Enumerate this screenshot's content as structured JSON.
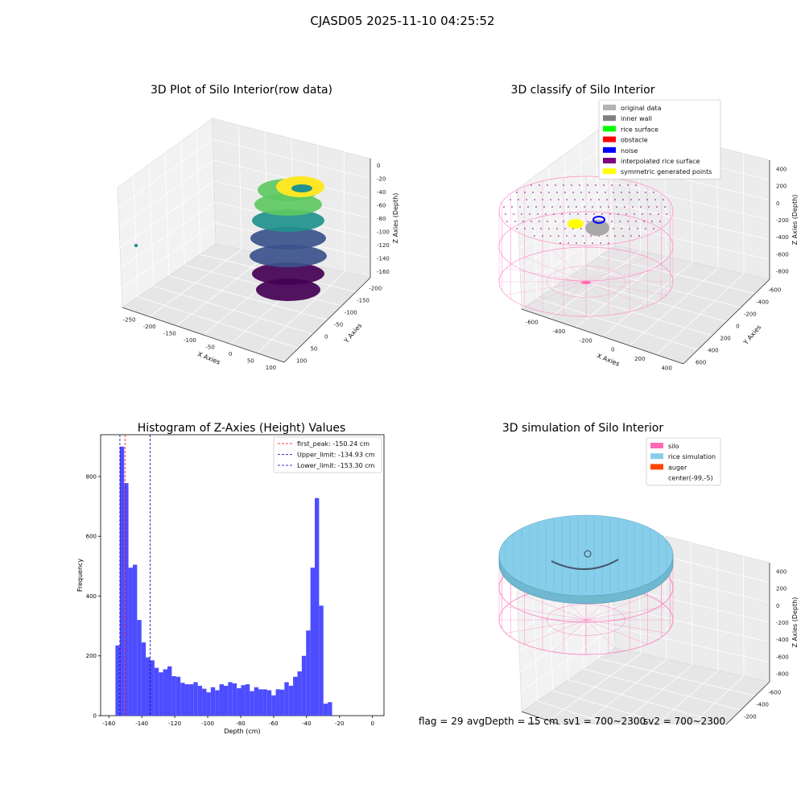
{
  "figure": {
    "suptitle": "CJASD05 2025-11-10 04:25:52",
    "footer": {
      "flag": "flag = 29",
      "avg_depth": "avgDepth = 15 cm",
      "sv1": "sv1 = 700~2300",
      "sv2": "sv2 = 700~2300"
    }
  },
  "panels": {
    "raw": {
      "title": "3D Plot of Silo Interior(row data)",
      "xlabel": "X Axies",
      "ylabel": "Y Axies",
      "zlabel": "Z Axies (Depth)",
      "xticks": [
        "-250",
        "-200",
        "-150",
        "-100",
        "-50",
        "0",
        "50",
        "100"
      ],
      "yticks": [
        "100",
        "50",
        "0",
        "-50",
        "-100",
        "-150",
        "-200"
      ],
      "zticks": [
        "0",
        "-20",
        "-40",
        "-60",
        "-80",
        "-100",
        "-120",
        "-140",
        "-160"
      ],
      "colormap": [
        "#440154",
        "#3b528b",
        "#21918c",
        "#5ec962",
        "#fde725"
      ]
    },
    "classify": {
      "title": "3D classify of Silo Interior",
      "xlabel": "X Axies",
      "ylabel": "Y Axies",
      "zlabel": "Z Axies (Depth)",
      "xticks": [
        "-600",
        "-400",
        "-200",
        "0",
        "200",
        "400"
      ],
      "yticks": [
        "600",
        "400",
        "200",
        "0",
        "-200",
        "-400",
        "-600"
      ],
      "zticks": [
        "400",
        "200",
        "0",
        "-200",
        "-400",
        "-600",
        "-800"
      ],
      "legend": [
        {
          "label": "original data",
          "color": "#b3b3b3"
        },
        {
          "label": "inner wall",
          "color": "#808080"
        },
        {
          "label": "rice surface",
          "color": "#00ff00"
        },
        {
          "label": "obstacle",
          "color": "#ff0000"
        },
        {
          "label": "noise",
          "color": "#0000ff"
        },
        {
          "label": "interpolated rice surface",
          "color": "#800080"
        },
        {
          "label": "symmetric generated points",
          "color": "#ffff00"
        }
      ]
    },
    "simulation": {
      "title": "3D simulation of Silo Interior",
      "xlabel": "X Axies",
      "ylabel": "Y Axies",
      "zlabel": "Z Axies (Depth)",
      "xticks": [
        "-600",
        "-400",
        "-200",
        "0",
        "200",
        "400"
      ],
      "yticks": [
        "600",
        "400",
        "200",
        "0",
        "-200",
        "-400",
        "-600"
      ],
      "zticks": [
        "400",
        "200",
        "0",
        "-200",
        "-400",
        "-600",
        "-800"
      ],
      "legend": [
        {
          "label": "silo",
          "color": "#ff69b4"
        },
        {
          "label": "rice simulation",
          "color": "#87ceeb"
        },
        {
          "label": "auger",
          "color": "#ff4500"
        },
        {
          "label": "center(-99,-5)",
          "color": ""
        }
      ]
    }
  },
  "chart_data": {
    "type": "bar",
    "title": "Histogram of Z-Axies (Height) Values",
    "xlabel": "Depth (cm)",
    "ylabel": "Frequency",
    "xlim": [
      -160,
      0
    ],
    "ylim": [
      0,
      940
    ],
    "xticks": [
      -160,
      -140,
      -120,
      -100,
      -80,
      -60,
      -40,
      -20,
      0
    ],
    "yticks": [
      0,
      200,
      400,
      600,
      800
    ],
    "bin_width": 2.63,
    "bin_start": -156.0,
    "values": [
      235,
      900,
      778,
      495,
      505,
      320,
      245,
      195,
      185,
      160,
      145,
      155,
      165,
      132,
      130,
      110,
      105,
      105,
      112,
      100,
      90,
      78,
      95,
      85,
      105,
      100,
      112,
      108,
      92,
      102,
      105,
      82,
      95,
      88,
      88,
      85,
      68,
      88,
      87,
      112,
      100,
      130,
      148,
      200,
      285,
      495,
      728,
      368,
      40,
      45
    ],
    "bar_color": "#4d4dff",
    "lines": [
      {
        "label": "first_peak: -150.24 cm",
        "x": -150.24,
        "color": "#ff0000"
      },
      {
        "label": "Upper_limit: -134.93 cm",
        "x": -134.93,
        "color": "#0000b0"
      },
      {
        "label": "Lower_limit: -153.30 cm",
        "x": -153.3,
        "color": "#0000b0"
      }
    ],
    "legend_position": "top-right"
  }
}
